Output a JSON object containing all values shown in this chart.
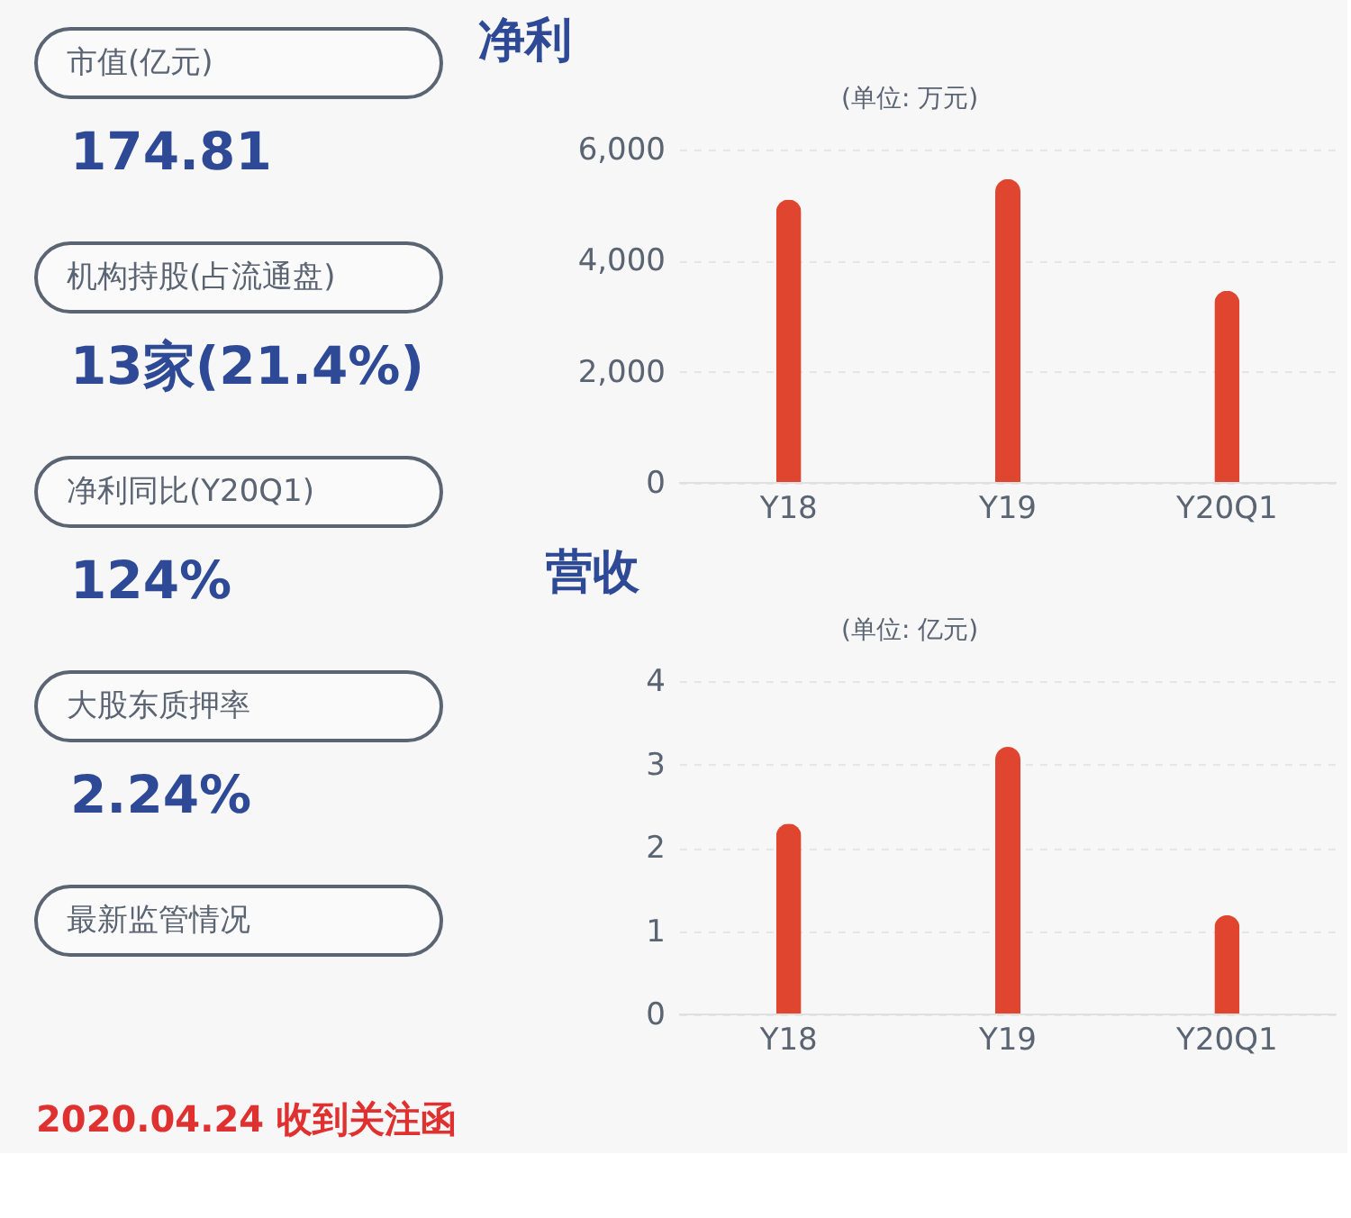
{
  "chart_data": [
    {
      "type": "other",
      "annotations": [
        "市值(亿元)",
        "174.81",
        "机构持股(占流通盘)",
        "13家(21.4%)",
        "净利同比(Y20Q1)",
        "124%",
        "大股东质押率",
        "2.24%",
        "最新监管情况",
        "2020.04.24 收到关注函"
      ]
    },
    {
      "type": "bar",
      "title": "净利",
      "subtitle": "(单位: 万元)",
      "categories": [
        "Y18",
        "Y19",
        "Y20Q1"
      ],
      "series": [
        {
          "color": "#e0452f",
          "values": [
            5100,
            5470,
            3460
          ]
        }
      ],
      "ylim": [
        0,
        6000
      ],
      "yticks": [
        {
          "value": 0,
          "label": "0"
        },
        {
          "value": 2000,
          "label": "2,000"
        },
        {
          "value": 4000,
          "label": "4,000"
        },
        {
          "value": 6000,
          "label": "6,000"
        }
      ],
      "grid": "y",
      "legend": false
    },
    {
      "type": "bar",
      "title": "营收",
      "subtitle": "(单位: 亿元)",
      "categories": [
        "Y18",
        "Y19",
        "Y20Q1"
      ],
      "series": [
        {
          "color": "#e0452f",
          "values": [
            2.29,
            3.21,
            1.19
          ]
        }
      ],
      "ylim": [
        0,
        4
      ],
      "yticks": [
        0,
        1,
        2,
        3,
        4
      ],
      "grid": "y",
      "legend": false
    }
  ]
}
